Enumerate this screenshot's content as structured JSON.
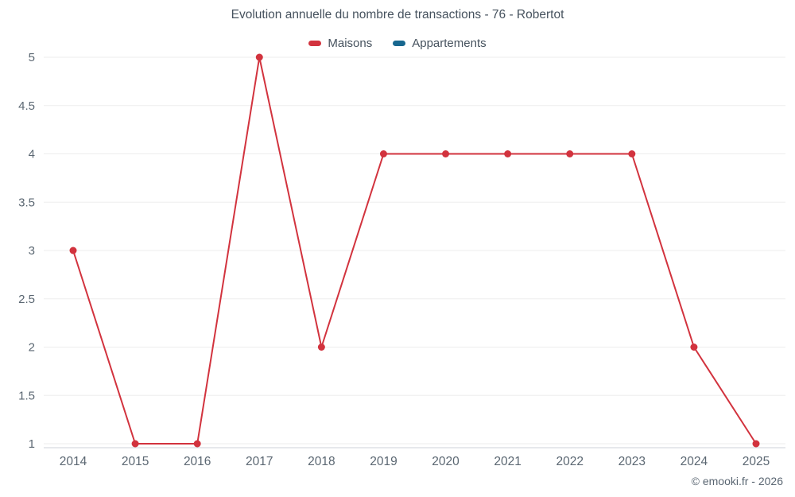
{
  "chart_data": {
    "type": "line",
    "title": "Evolution annuelle du nombre de transactions - 76 - Robertot",
    "categories": [
      "2014",
      "2015",
      "2016",
      "2017",
      "2018",
      "2019",
      "2020",
      "2021",
      "2022",
      "2023",
      "2024",
      "2025"
    ],
    "series": [
      {
        "name": "Maisons",
        "color": "#d2333e",
        "values": [
          3,
          1,
          1,
          5,
          2,
          4,
          4,
          4,
          4,
          4,
          2,
          1
        ]
      },
      {
        "name": "Appartements",
        "color": "#17678f",
        "values": []
      }
    ],
    "ylim": [
      1,
      5
    ],
    "yticks": [
      1,
      1.5,
      2,
      2.5,
      3,
      3.5,
      4,
      4.5,
      5
    ],
    "grid": "horizontal",
    "legend_position": "top"
  },
  "colors": {
    "grid_line": "#ededed",
    "axis_line": "#ccd2d8",
    "tick_label": "#5b6772"
  },
  "footer": {
    "credit": "© emooki.fr - 2026"
  }
}
